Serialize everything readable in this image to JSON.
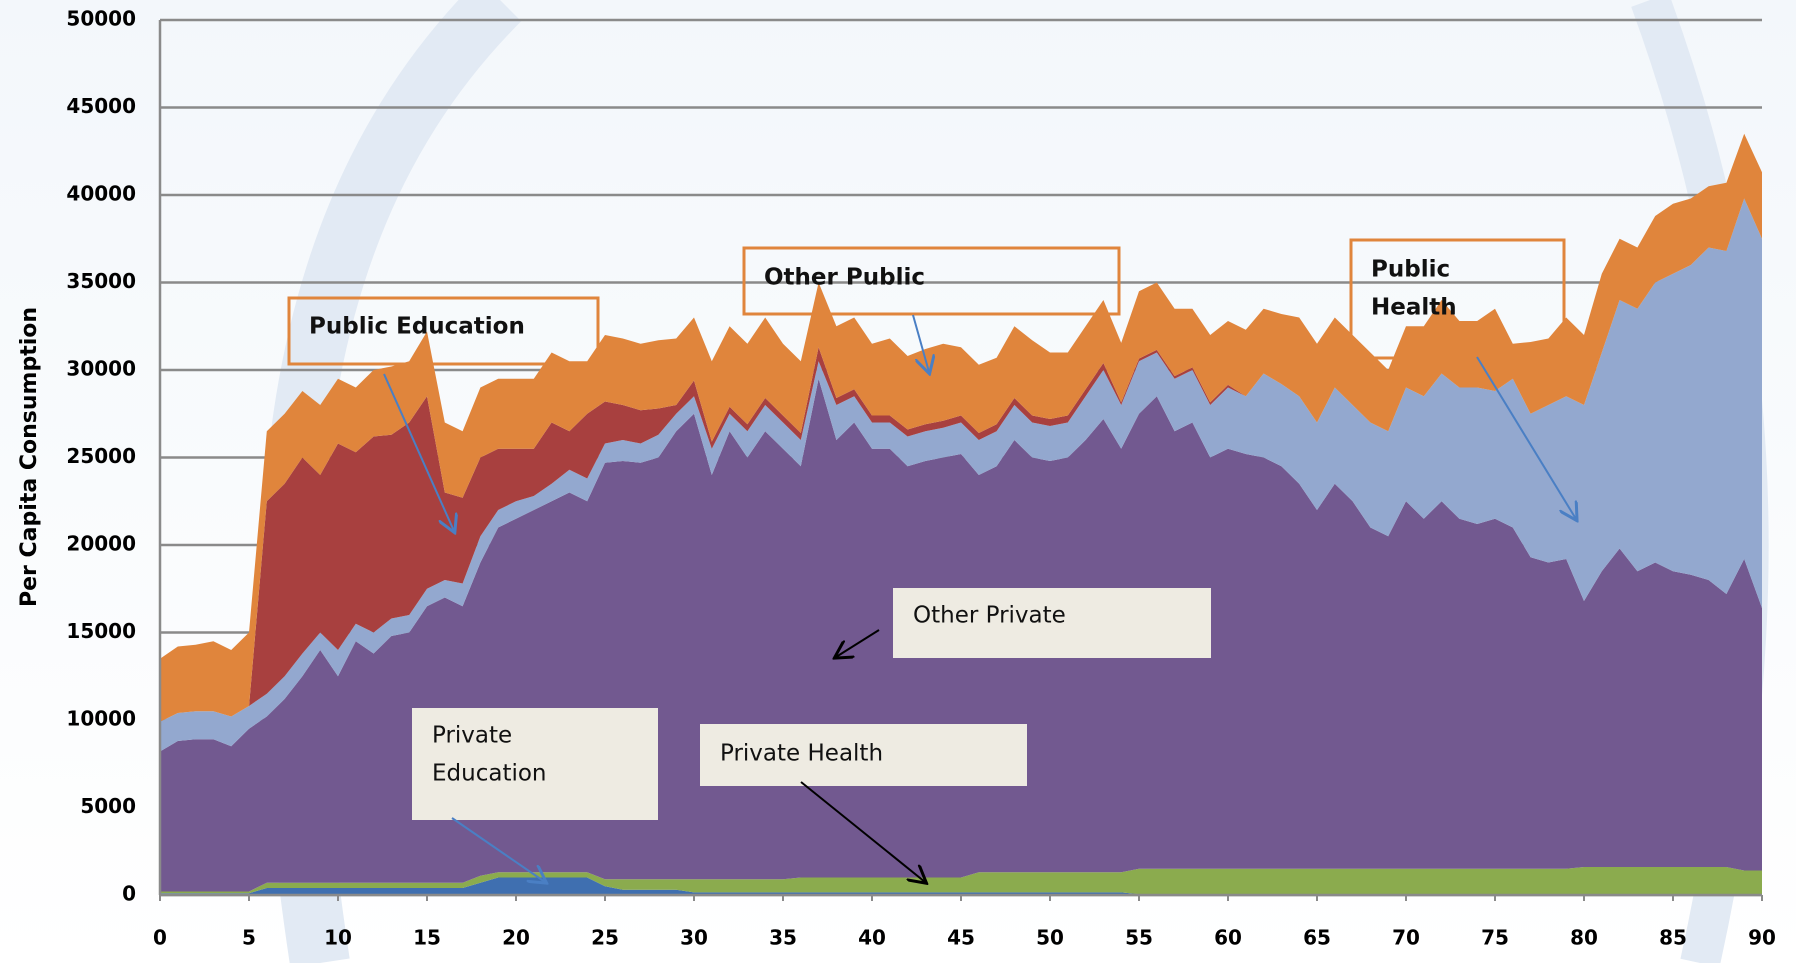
{
  "chart_data": {
    "type": "stacked_area",
    "y_label": "Per Capita Consumption",
    "x": [
      0,
      1,
      2,
      3,
      4,
      5,
      6,
      7,
      8,
      9,
      10,
      11,
      12,
      13,
      14,
      15,
      16,
      17,
      18,
      19,
      20,
      21,
      22,
      23,
      24,
      25,
      26,
      27,
      28,
      29,
      30,
      31,
      32,
      33,
      34,
      35,
      36,
      37,
      38,
      39,
      40,
      41,
      42,
      43,
      44,
      45,
      46,
      47,
      48,
      49,
      50,
      51,
      52,
      53,
      54,
      55,
      56,
      57,
      58,
      59,
      60,
      61,
      62,
      63,
      64,
      65,
      66,
      67,
      68,
      69,
      70,
      71,
      72,
      73,
      74,
      75,
      76,
      77,
      78,
      79,
      80,
      81,
      82,
      83,
      84,
      85,
      86,
      87,
      88,
      89,
      90
    ],
    "xlim": [
      0,
      90
    ],
    "xticks": [
      0,
      5,
      10,
      15,
      20,
      25,
      30,
      35,
      40,
      45,
      50,
      55,
      60,
      65,
      70,
      75,
      80,
      85,
      90
    ],
    "ylim": [
      0,
      50000
    ],
    "yticks": [
      0,
      5000,
      10000,
      15000,
      20000,
      25000,
      30000,
      35000,
      40000,
      45000,
      50000
    ],
    "grid": true,
    "series": [
      {
        "name": "Private Education",
        "color": "#3f6fb0",
        "values": [
          100,
          100,
          100,
          100,
          100,
          100,
          400,
          400,
          400,
          400,
          400,
          400,
          400,
          400,
          400,
          400,
          400,
          400,
          700,
          1000,
          1000,
          1000,
          1000,
          1000,
          1000,
          500,
          300,
          300,
          300,
          300,
          150,
          150,
          150,
          150,
          150,
          150,
          150,
          150,
          150,
          150,
          150,
          150,
          150,
          150,
          150,
          150,
          150,
          150,
          150,
          150,
          150,
          150,
          150,
          150,
          150,
          50,
          50,
          50,
          50,
          50,
          50,
          50,
          50,
          50,
          50,
          50,
          50,
          50,
          50,
          50,
          50,
          50,
          50,
          50,
          50,
          50,
          50,
          50,
          50,
          50,
          50,
          50,
          50,
          50,
          50,
          50,
          50,
          50,
          50,
          50,
          50
        ]
      },
      {
        "name": "Private Health",
        "color": "#8bab4e",
        "values": [
          100,
          100,
          100,
          100,
          100,
          100,
          300,
          300,
          300,
          300,
          300,
          300,
          300,
          300,
          300,
          300,
          300,
          300,
          400,
          300,
          300,
          300,
          300,
          300,
          300,
          400,
          600,
          600,
          600,
          600,
          750,
          750,
          750,
          750,
          750,
          750,
          850,
          850,
          850,
          850,
          850,
          850,
          850,
          850,
          850,
          850,
          1150,
          1150,
          1150,
          1150,
          1150,
          1150,
          1150,
          1150,
          1150,
          1450,
          1450,
          1450,
          1450,
          1450,
          1450,
          1450,
          1450,
          1450,
          1450,
          1450,
          1450,
          1450,
          1450,
          1450,
          1450,
          1450,
          1450,
          1450,
          1450,
          1450,
          1450,
          1450,
          1450,
          1450,
          1550,
          1550,
          1550,
          1550,
          1550,
          1550,
          1550,
          1550,
          1550,
          1350,
          1350
        ]
      },
      {
        "name": "Other Private",
        "color": "#725990",
        "values": [
          8000,
          8600,
          8700,
          8700,
          8300,
          9300,
          9500,
          10500,
          11800,
          13300,
          11800,
          13800,
          13100,
          14100,
          14300,
          15800,
          16300,
          15800,
          17900,
          19700,
          20200,
          20700,
          21200,
          21700,
          21200,
          23800,
          23900,
          23800,
          24100,
          25600,
          26600,
          23100,
          25600,
          24100,
          25600,
          24600,
          23500,
          28500,
          25000,
          26000,
          24500,
          24500,
          23500,
          23800,
          24000,
          24200,
          22700,
          23200,
          24700,
          23700,
          23500,
          23700,
          24700,
          25900,
          24200,
          26000,
          27000,
          25000,
          25500,
          23500,
          24000,
          23700,
          23500,
          23000,
          22000,
          20500,
          22000,
          21000,
          19500,
          19000,
          21000,
          20000,
          21000,
          20000,
          19700,
          20000,
          19500,
          17800,
          17500,
          17700,
          15200,
          16900,
          18200,
          16900,
          17400,
          16900,
          16700,
          16400,
          15600,
          17800,
          15000
        ]
      },
      {
        "name": "Public Health",
        "color": "#93a8cf",
        "values": [
          1700,
          1600,
          1600,
          1600,
          1700,
          1300,
          1300,
          1300,
          1300,
          1000,
          1500,
          1000,
          1200,
          1000,
          1000,
          1000,
          1000,
          1300,
          1500,
          1000,
          1000,
          800,
          1000,
          1300,
          1300,
          1100,
          1200,
          1100,
          1300,
          1000,
          1000,
          1500,
          1000,
          1500,
          1500,
          1500,
          1500,
          1000,
          2000,
          1500,
          1500,
          1500,
          1700,
          1700,
          1700,
          1800,
          2000,
          2000,
          2000,
          2000,
          2000,
          2000,
          2500,
          2800,
          2500,
          3000,
          2500,
          3000,
          3000,
          3000,
          3500,
          3300,
          4800,
          4700,
          5000,
          5000,
          5500,
          5500,
          6000,
          6000,
          6500,
          7000,
          7300,
          7500,
          7800,
          7300,
          8500,
          8200,
          9000,
          9300,
          11200,
          12500,
          14200,
          15000,
          16000,
          17000,
          17700,
          19000,
          19600,
          20600,
          21100
        ]
      },
      {
        "name": "Public Education",
        "color": "#a8403f",
        "values": [
          0,
          0,
          0,
          0,
          0,
          0,
          11000,
          11000,
          11200,
          9000,
          11800,
          9800,
          11200,
          10500,
          11000,
          11000,
          5000,
          4900,
          4500,
          3500,
          3000,
          2700,
          3500,
          2200,
          3700,
          2400,
          2000,
          1900,
          1500,
          500,
          900,
          400,
          400,
          400,
          400,
          400,
          400,
          800,
          400,
          400,
          400,
          400,
          400,
          400,
          400,
          400,
          400,
          400,
          400,
          400,
          400,
          400,
          400,
          400,
          150,
          150,
          150,
          150,
          150,
          150,
          150,
          0,
          0,
          0,
          0,
          0,
          0,
          0,
          0,
          0,
          0,
          0,
          0,
          0,
          0,
          0,
          0,
          0,
          0,
          0,
          0,
          0,
          0,
          0,
          0,
          0,
          0,
          0,
          0,
          0,
          0
        ]
      },
      {
        "name": "Other Public",
        "color": "#e0853c",
        "values": [
          3600,
          3800,
          3800,
          4000,
          3800,
          4200,
          4000,
          4000,
          3800,
          4000,
          3700,
          3700,
          3800,
          3900,
          3500,
          3700,
          4000,
          3800,
          4000,
          4000,
          4000,
          4000,
          4000,
          4000,
          3000,
          3800,
          3800,
          3800,
          3900,
          3800,
          3600,
          4600,
          4600,
          4600,
          4600,
          4100,
          4100,
          3700,
          4100,
          4100,
          4100,
          4400,
          4200,
          4300,
          4400,
          3900,
          3900,
          3800,
          4100,
          4300,
          3800,
          3600,
          3600,
          3600,
          3400,
          3850,
          3850,
          3850,
          3350,
          3850,
          3650,
          3800,
          3700,
          4000,
          4500,
          4500,
          4000,
          4000,
          4000,
          3500,
          3500,
          4000,
          4200,
          3800,
          3800,
          4700,
          2000,
          4100,
          3800,
          4500,
          4000,
          4500,
          3500,
          3500,
          3800,
          4000,
          3800,
          3500,
          3900,
          3700,
          3800
        ]
      }
    ],
    "annotations": [
      [
        "Public  Education"
      ],
      [
        "Other Public"
      ],
      [
        "Public",
        "Health"
      ],
      [
        "Other Private"
      ],
      [
        "Private",
        "Education"
      ],
      [
        "Private Health"
      ]
    ]
  }
}
